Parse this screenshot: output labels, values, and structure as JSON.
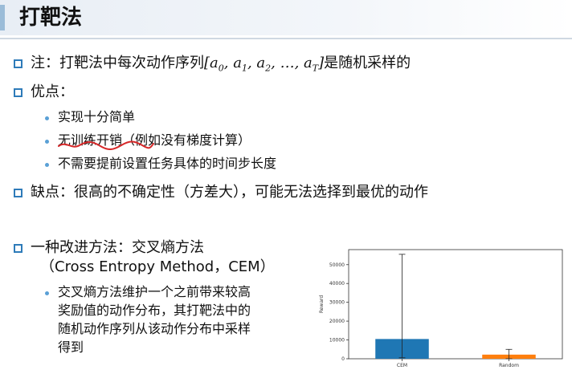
{
  "title": "打靶法",
  "note": {
    "prefix": "注：打靶法中每次动作序列",
    "seq_open": "[",
    "a0": "a",
    "a0_sub": "0",
    "a1": "a",
    "a1_sub": "1",
    "a2": "a",
    "a2_sub": "2",
    "ellipsis": "…",
    "aT": "a",
    "aT_sub": "T",
    "comma": ", ",
    "seq_close": "]",
    "suffix": "是随机采样的"
  },
  "pros": {
    "heading": "优点：",
    "items": [
      "实现十分简单",
      "无训练开销",
      "（例如没有梯度计算）",
      "不需要提前设置任务具体的时间步长度"
    ]
  },
  "cons": "缺点：很高的不确定性（方差大），可能无法选择到最优的动作",
  "improve": {
    "line1": "一种改进方法：交叉熵方法",
    "line2": "（Cross Entropy Method，CEM）",
    "desc": [
      "交叉熵方法维护一个之前带来较高",
      "奖励值的动作分布，其打靶法中的",
      "随机动作序列从该动作分布中采样",
      "得到"
    ]
  },
  "colors": {
    "accent": "#2e7bb9",
    "cem": "#1f77b4",
    "random": "#ff7f0e",
    "squiggle": "#d62728"
  },
  "chart_data": {
    "type": "bar",
    "categories": [
      "CEM",
      "Random"
    ],
    "values": [
      10500,
      2200
    ],
    "error_upper": [
      55500,
      5000
    ],
    "error_lower": [
      500,
      0
    ],
    "ylabel": "Reward",
    "xlabel": "",
    "ylim": [
      0,
      58000
    ],
    "yticks": [
      0,
      10000,
      20000,
      30000,
      40000,
      50000
    ],
    "ytick_labels": [
      "0",
      "10000",
      "20000",
      "30000",
      "40000",
      "50000"
    ]
  }
}
